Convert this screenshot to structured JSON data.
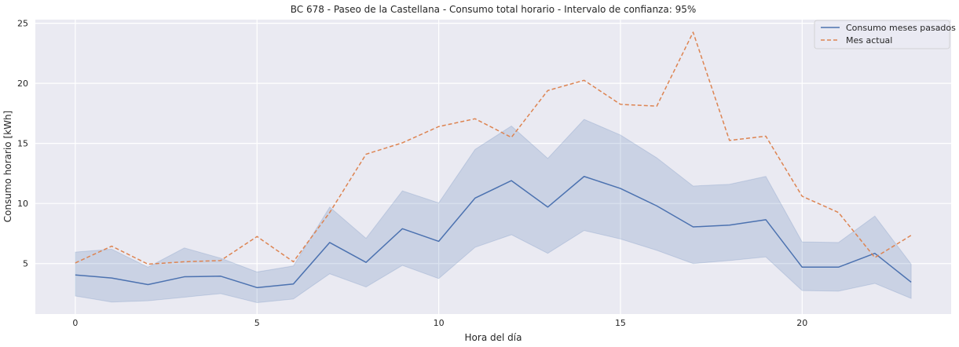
{
  "chart_data": {
    "type": "line",
    "title": "BC 678 - Paseo de la Castellana - Consumo total horario - Intervalo de confianza: 95%",
    "xlabel": "Hora del día",
    "ylabel": "Consumo horario [kWh]",
    "xlim": [
      -1.1,
      24.1
    ],
    "ylim": [
      0.8,
      25.3
    ],
    "xticks": [
      0,
      5,
      10,
      15,
      20
    ],
    "yticks": [
      5,
      10,
      15,
      20,
      25
    ],
    "grid": true,
    "legend_position": "top-right",
    "x": [
      0,
      1,
      2,
      3,
      4,
      5,
      6,
      7,
      8,
      9,
      10,
      11,
      12,
      13,
      14,
      15,
      16,
      17,
      18,
      19,
      20,
      21,
      22,
      23
    ],
    "series": [
      {
        "name": "Consumo meses pasados",
        "style": "solid",
        "color": "#4c72b0",
        "values": [
          4.05,
          3.8,
          3.25,
          3.9,
          3.95,
          3.0,
          3.3,
          6.75,
          5.1,
          7.9,
          6.85,
          10.45,
          11.9,
          9.7,
          12.25,
          11.25,
          9.8,
          8.05,
          8.2,
          8.65,
          4.7,
          4.7,
          5.85,
          3.45
        ],
        "ci_lower": [
          2.3,
          1.8,
          1.9,
          2.2,
          2.5,
          1.75,
          2.05,
          4.15,
          3.05,
          4.85,
          3.75,
          6.35,
          7.4,
          5.85,
          7.75,
          7.05,
          6.1,
          5.0,
          5.25,
          5.55,
          2.75,
          2.7,
          3.35,
          2.1
        ],
        "ci_upper": [
          5.95,
          6.2,
          4.7,
          6.3,
          5.45,
          4.3,
          4.8,
          9.7,
          7.1,
          11.05,
          10.05,
          14.5,
          16.45,
          13.75,
          17.0,
          15.7,
          13.8,
          11.45,
          11.6,
          12.25,
          6.8,
          6.75,
          8.95,
          4.95
        ]
      },
      {
        "name": "Mes actual",
        "style": "dashed",
        "color": "#dd8452",
        "values": [
          5.05,
          6.45,
          4.95,
          5.15,
          5.25,
          7.25,
          5.15,
          9.25,
          14.1,
          15.05,
          16.4,
          17.05,
          15.5,
          19.4,
          20.25,
          18.25,
          18.1,
          24.25,
          15.25,
          15.6,
          10.6,
          9.25,
          5.5,
          7.35
        ]
      }
    ],
    "ci_color": "#4c72b0"
  }
}
